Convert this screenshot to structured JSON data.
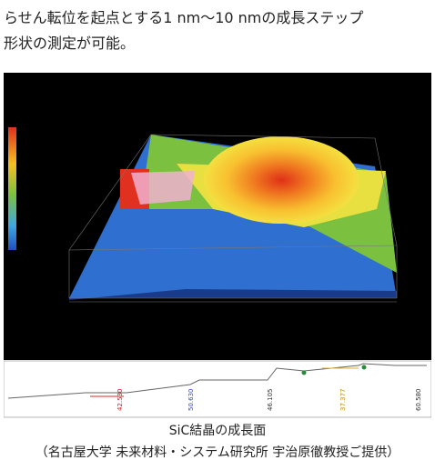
{
  "heading": {
    "lines": [
      "らせん転位を起点とする1 nm～10 nmの成長ステップ",
      "形状の測定が可能。"
    ]
  },
  "figure": {
    "profile_labels": [
      "42.530",
      "50.630",
      "46.105",
      "37.377",
      "60.580"
    ]
  },
  "caption": {
    "lines": [
      "SiC結晶の成長面",
      "（名古屋大学 未来材料・システム研究所 宇治原徹教授ご提供）"
    ]
  }
}
